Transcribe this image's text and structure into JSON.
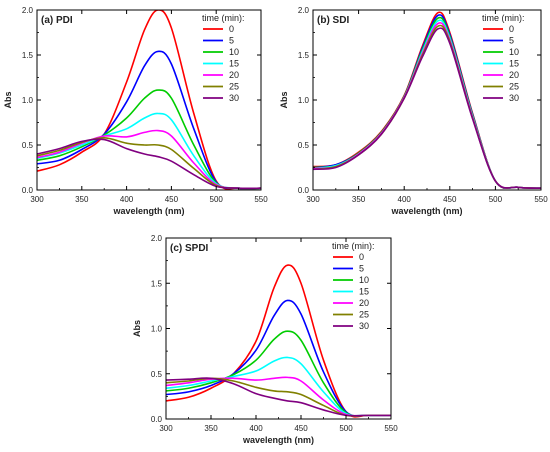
{
  "legend_colors": [
    "#ff0000",
    "#0000ff",
    "#00cc00",
    "#00ffff",
    "#ff00ff",
    "#808000",
    "#800080"
  ],
  "chart_data": [
    {
      "type": "line",
      "title": "(a) PDI",
      "xlabel": "wavelength (nm)",
      "ylabel": "Abs",
      "xlim": [
        300,
        550
      ],
      "ylim": [
        0,
        2.0
      ],
      "xticks": [
        "300",
        "350",
        "400",
        "450",
        "500",
        "550"
      ],
      "yticks": [
        "0.0",
        "0.5",
        "1.0",
        "1.5",
        "2.0"
      ],
      "legend_title": "time (min):",
      "legend_position": "top-right",
      "x": [
        300,
        325,
        350,
        375,
        400,
        420,
        435,
        450,
        475,
        500,
        525,
        550
      ],
      "series": [
        {
          "name": "0",
          "values": [
            0.21,
            0.28,
            0.42,
            0.62,
            1.2,
            1.78,
            2.0,
            1.8,
            0.85,
            0.1,
            0.02,
            0.02
          ]
        },
        {
          "name": "5",
          "values": [
            0.29,
            0.33,
            0.45,
            0.62,
            0.98,
            1.38,
            1.54,
            1.4,
            0.68,
            0.09,
            0.02,
            0.02
          ]
        },
        {
          "name": "10",
          "values": [
            0.33,
            0.38,
            0.48,
            0.61,
            0.8,
            1.02,
            1.11,
            1.02,
            0.5,
            0.08,
            0.02,
            0.02
          ]
        },
        {
          "name": "15",
          "values": [
            0.35,
            0.41,
            0.5,
            0.6,
            0.68,
            0.8,
            0.85,
            0.78,
            0.38,
            0.07,
            0.02,
            0.02
          ]
        },
        {
          "name": "20",
          "values": [
            0.36,
            0.42,
            0.52,
            0.6,
            0.59,
            0.64,
            0.66,
            0.6,
            0.3,
            0.06,
            0.02,
            0.02
          ]
        },
        {
          "name": "25",
          "values": [
            0.38,
            0.44,
            0.53,
            0.58,
            0.52,
            0.5,
            0.5,
            0.45,
            0.24,
            0.05,
            0.02,
            0.02
          ]
        },
        {
          "name": "30",
          "values": [
            0.4,
            0.46,
            0.54,
            0.56,
            0.46,
            0.4,
            0.37,
            0.32,
            0.17,
            0.04,
            0.02,
            0.02
          ]
        }
      ]
    },
    {
      "type": "line",
      "title": "(b) SDI",
      "xlabel": "wavelength (nm)",
      "ylabel": "Abs",
      "xlim": [
        300,
        550
      ],
      "ylim": [
        0,
        2.0
      ],
      "xticks": [
        "300",
        "350",
        "400",
        "450",
        "500",
        "550"
      ],
      "yticks": [
        "0.0",
        "0.5",
        "1.0",
        "1.5",
        "2.0"
      ],
      "legend_title": "time (min):",
      "legend_position": "top-right",
      "x": [
        300,
        325,
        350,
        375,
        400,
        420,
        437,
        450,
        475,
        500,
        525,
        550
      ],
      "series": [
        {
          "name": "0",
          "values": [
            0.26,
            0.28,
            0.42,
            0.65,
            1.05,
            1.6,
            1.97,
            1.75,
            0.85,
            0.1,
            0.03,
            0.02
          ]
        },
        {
          "name": "5",
          "values": [
            0.25,
            0.28,
            0.41,
            0.64,
            1.04,
            1.58,
            1.94,
            1.73,
            0.84,
            0.1,
            0.03,
            0.02
          ]
        },
        {
          "name": "10",
          "values": [
            0.25,
            0.27,
            0.41,
            0.64,
            1.04,
            1.56,
            1.91,
            1.71,
            0.83,
            0.1,
            0.03,
            0.02
          ]
        },
        {
          "name": "15",
          "values": [
            0.24,
            0.27,
            0.4,
            0.63,
            1.03,
            1.54,
            1.88,
            1.69,
            0.82,
            0.1,
            0.03,
            0.02
          ]
        },
        {
          "name": "20",
          "values": [
            0.24,
            0.26,
            0.4,
            0.63,
            1.03,
            1.52,
            1.85,
            1.67,
            0.81,
            0.1,
            0.03,
            0.02
          ]
        },
        {
          "name": "25",
          "values": [
            0.23,
            0.26,
            0.39,
            0.62,
            1.02,
            1.5,
            1.82,
            1.65,
            0.8,
            0.1,
            0.03,
            0.02
          ]
        },
        {
          "name": "30",
          "values": [
            0.23,
            0.25,
            0.39,
            0.62,
            1.02,
            1.48,
            1.79,
            1.63,
            0.79,
            0.1,
            0.03,
            0.02
          ]
        }
      ]
    },
    {
      "type": "line",
      "title": "(c) SPDI",
      "xlabel": "wavelength (nm)",
      "ylabel": "Abs",
      "xlim": [
        300,
        550
      ],
      "ylim": [
        0,
        2.0
      ],
      "xticks": [
        "300",
        "350",
        "400",
        "450",
        "500",
        "550"
      ],
      "yticks": [
        "0.0",
        "0.5",
        "1.0",
        "1.5",
        "2.0"
      ],
      "legend_title": "time (min):",
      "legend_position": "top-right",
      "x": [
        300,
        325,
        350,
        375,
        400,
        420,
        435,
        450,
        475,
        500,
        525,
        550
      ],
      "series": [
        {
          "name": "0",
          "values": [
            0.2,
            0.24,
            0.34,
            0.5,
            0.86,
            1.45,
            1.7,
            1.5,
            0.65,
            0.08,
            0.04,
            0.04
          ]
        },
        {
          "name": "5",
          "values": [
            0.27,
            0.3,
            0.37,
            0.5,
            0.76,
            1.14,
            1.31,
            1.16,
            0.52,
            0.08,
            0.04,
            0.04
          ]
        },
        {
          "name": "10",
          "values": [
            0.31,
            0.34,
            0.4,
            0.49,
            0.65,
            0.88,
            0.97,
            0.87,
            0.4,
            0.07,
            0.04,
            0.04
          ]
        },
        {
          "name": "15",
          "values": [
            0.34,
            0.37,
            0.42,
            0.47,
            0.53,
            0.64,
            0.68,
            0.61,
            0.3,
            0.06,
            0.04,
            0.04
          ]
        },
        {
          "name": "20",
          "values": [
            0.37,
            0.4,
            0.44,
            0.45,
            0.43,
            0.45,
            0.46,
            0.42,
            0.21,
            0.05,
            0.04,
            0.04
          ]
        },
        {
          "name": "25",
          "values": [
            0.4,
            0.42,
            0.45,
            0.42,
            0.35,
            0.31,
            0.3,
            0.27,
            0.15,
            0.04,
            0.04,
            0.04
          ]
        },
        {
          "name": "30",
          "values": [
            0.43,
            0.44,
            0.45,
            0.39,
            0.28,
            0.23,
            0.2,
            0.18,
            0.1,
            0.04,
            0.04,
            0.04
          ]
        }
      ]
    }
  ]
}
